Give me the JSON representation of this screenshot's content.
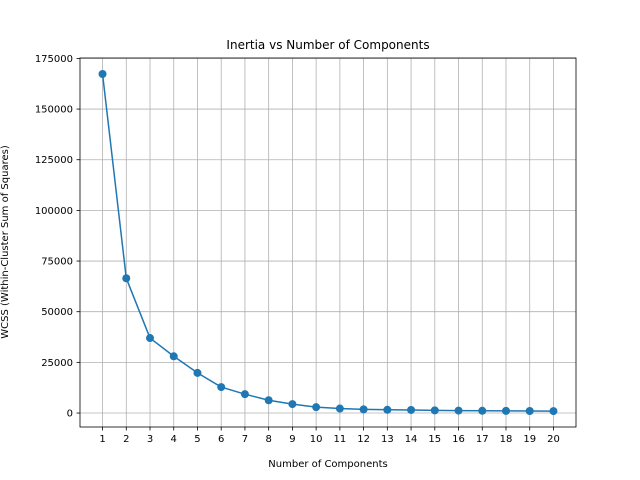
{
  "chart_data": {
    "type": "line",
    "title": "Inertia vs Number of Components",
    "xlabel": "Number of Components",
    "ylabel": "WCSS (Within-Cluster Sum of Squares)",
    "x": [
      1,
      2,
      3,
      4,
      5,
      6,
      7,
      8,
      9,
      10,
      11,
      12,
      13,
      14,
      15,
      16,
      17,
      18,
      19,
      20
    ],
    "x_tick_labels": [
      "1",
      "2",
      "3",
      "4",
      "5",
      "6",
      "7",
      "8",
      "9",
      "10",
      "11",
      "12",
      "13",
      "14",
      "15",
      "16",
      "17",
      "18",
      "19",
      "20"
    ],
    "y_ticks": [
      0,
      25000,
      50000,
      75000,
      100000,
      125000,
      150000,
      175000
    ],
    "y_tick_labels": [
      "0",
      "25000",
      "50000",
      "75000",
      "100000",
      "125000",
      "150000",
      "175000"
    ],
    "xlim": [
      0.05,
      20.95
    ],
    "ylim": [
      -6900,
      175200
    ],
    "grid": true,
    "marker": "circle",
    "series": [
      {
        "color": "#1f77b4",
        "values": [
          167300,
          66500,
          37000,
          28000,
          19800,
          12800,
          9300,
          6300,
          4400,
          2900,
          2200,
          1800,
          1600,
          1500,
          1300,
          1200,
          1100,
          1050,
          1000,
          950
        ]
      }
    ]
  }
}
